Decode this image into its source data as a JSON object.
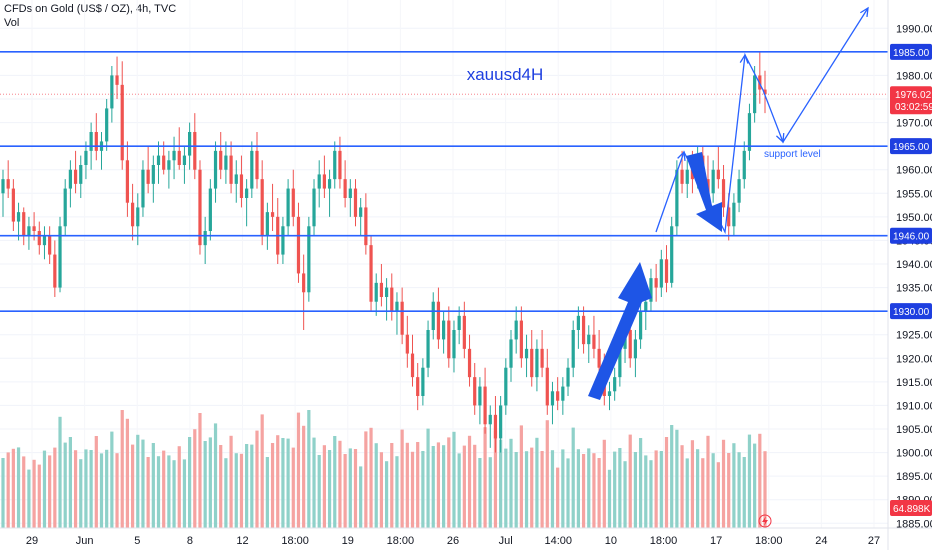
{
  "header": {
    "symbol_line": "CFDs on Gold (US$ / OZ), 4h, TVC",
    "volume_label": "Vol"
  },
  "chart_data": {
    "type": "candlestick",
    "title": "xauusd4H",
    "price_axis": {
      "ticks": [
        1885,
        1890,
        1895,
        1900,
        1905,
        1910,
        1915,
        1920,
        1925,
        1930,
        1935,
        1940,
        1945,
        1950,
        1955,
        1960,
        1965,
        1970,
        1975,
        1980,
        1985,
        1990
      ],
      "tick_labels": [
        "1885.00",
        "1890.00",
        "1895.00",
        "1900.00",
        "1905.00",
        "1910.00",
        "1915.00",
        "1920.00",
        "1925.00",
        "1930.00",
        "1935.00",
        "1940.00",
        "1945.00",
        "1950.00",
        "1955.00",
        "1960.00",
        "1965.00",
        "1970.00",
        "1975.00",
        "1980.00",
        "1985.00",
        "1990.00"
      ],
      "range": [
        1884,
        1996
      ]
    },
    "time_axis_labels": [
      "29",
      "Jun",
      "5",
      "8",
      "12",
      "18:00",
      "19",
      "18:00",
      "26",
      "Jul",
      "14:00",
      "10",
      "18:00",
      "17",
      "18:00",
      "24",
      "27"
    ],
    "levels": [
      {
        "price": 1985.0,
        "label": "1985.00"
      },
      {
        "price": 1965.0,
        "label": "1965.00"
      },
      {
        "price": 1946.0,
        "label": "1946.00"
      },
      {
        "price": 1930.0,
        "label": "1930.00"
      }
    ],
    "current_price": {
      "price": 1976.02,
      "label": "1976.02",
      "countdown": "03:02:59"
    },
    "volume_value": "64.898K",
    "annotations": {
      "support": "support level"
    },
    "colors": {
      "up": "#26a69a",
      "down": "#ef5350",
      "level": "#2962ff",
      "vol_up": "#8fd1c9",
      "vol_down": "#f5a3a1",
      "tag": "#1e3fe0",
      "price_tag": "#f23645"
    },
    "series": [
      {
        "o": 1955,
        "h": 1960,
        "l": 1950,
        "c": 1958
      },
      {
        "o": 1958,
        "h": 1962,
        "l": 1954,
        "c": 1956
      },
      {
        "o": 1956,
        "h": 1958,
        "l": 1947,
        "c": 1949
      },
      {
        "o": 1949,
        "h": 1953,
        "l": 1945,
        "c": 1951
      },
      {
        "o": 1951,
        "h": 1952,
        "l": 1944,
        "c": 1946
      },
      {
        "o": 1946,
        "h": 1950,
        "l": 1943,
        "c": 1948
      },
      {
        "o": 1948,
        "h": 1951,
        "l": 1945,
        "c": 1947
      },
      {
        "o": 1947,
        "h": 1949,
        "l": 1942,
        "c": 1944
      },
      {
        "o": 1944,
        "h": 1948,
        "l": 1941,
        "c": 1946
      },
      {
        "o": 1946,
        "h": 1948,
        "l": 1940,
        "c": 1942
      },
      {
        "o": 1942,
        "h": 1945,
        "l": 1933,
        "c": 1935
      },
      {
        "o": 1935,
        "h": 1950,
        "l": 1934,
        "c": 1948
      },
      {
        "o": 1948,
        "h": 1958,
        "l": 1946,
        "c": 1956
      },
      {
        "o": 1956,
        "h": 1962,
        "l": 1952,
        "c": 1960
      },
      {
        "o": 1960,
        "h": 1964,
        "l": 1955,
        "c": 1957
      },
      {
        "o": 1957,
        "h": 1963,
        "l": 1954,
        "c": 1961
      },
      {
        "o": 1961,
        "h": 1966,
        "l": 1958,
        "c": 1964
      },
      {
        "o": 1964,
        "h": 1970,
        "l": 1960,
        "c": 1968
      },
      {
        "o": 1968,
        "h": 1972,
        "l": 1962,
        "c": 1964
      },
      {
        "o": 1964,
        "h": 1968,
        "l": 1960,
        "c": 1966
      },
      {
        "o": 1966,
        "h": 1975,
        "l": 1964,
        "c": 1973
      },
      {
        "o": 1973,
        "h": 1982,
        "l": 1970,
        "c": 1980
      },
      {
        "o": 1980,
        "h": 1984,
        "l": 1975,
        "c": 1978
      },
      {
        "o": 1978,
        "h": 1983,
        "l": 1960,
        "c": 1962
      },
      {
        "o": 1962,
        "h": 1966,
        "l": 1950,
        "c": 1953
      },
      {
        "o": 1953,
        "h": 1957,
        "l": 1945,
        "c": 1948
      },
      {
        "o": 1948,
        "h": 1955,
        "l": 1944,
        "c": 1952
      },
      {
        "o": 1952,
        "h": 1962,
        "l": 1950,
        "c": 1960
      },
      {
        "o": 1960,
        "h": 1965,
        "l": 1955,
        "c": 1957
      },
      {
        "o": 1957,
        "h": 1963,
        "l": 1953,
        "c": 1961
      },
      {
        "o": 1961,
        "h": 1966,
        "l": 1957,
        "c": 1963
      },
      {
        "o": 1963,
        "h": 1966,
        "l": 1959,
        "c": 1960
      },
      {
        "o": 1960,
        "h": 1964,
        "l": 1956,
        "c": 1962
      },
      {
        "o": 1962,
        "h": 1967,
        "l": 1958,
        "c": 1964
      },
      {
        "o": 1964,
        "h": 1969,
        "l": 1960,
        "c": 1961
      },
      {
        "o": 1961,
        "h": 1965,
        "l": 1957,
        "c": 1963
      },
      {
        "o": 1963,
        "h": 1970,
        "l": 1960,
        "c": 1968
      },
      {
        "o": 1968,
        "h": 1972,
        "l": 1958,
        "c": 1960
      },
      {
        "o": 1960,
        "h": 1962,
        "l": 1942,
        "c": 1944
      },
      {
        "o": 1944,
        "h": 1950,
        "l": 1940,
        "c": 1947
      },
      {
        "o": 1947,
        "h": 1958,
        "l": 1945,
        "c": 1956
      },
      {
        "o": 1956,
        "h": 1966,
        "l": 1953,
        "c": 1964
      },
      {
        "o": 1964,
        "h": 1968,
        "l": 1958,
        "c": 1960
      },
      {
        "o": 1960,
        "h": 1966,
        "l": 1957,
        "c": 1963
      },
      {
        "o": 1963,
        "h": 1966,
        "l": 1955,
        "c": 1957
      },
      {
        "o": 1957,
        "h": 1962,
        "l": 1953,
        "c": 1959
      },
      {
        "o": 1959,
        "h": 1963,
        "l": 1952,
        "c": 1954
      },
      {
        "o": 1954,
        "h": 1958,
        "l": 1948,
        "c": 1956
      },
      {
        "o": 1956,
        "h": 1966,
        "l": 1954,
        "c": 1964
      },
      {
        "o": 1964,
        "h": 1968,
        "l": 1956,
        "c": 1958
      },
      {
        "o": 1958,
        "h": 1962,
        "l": 1944,
        "c": 1946
      },
      {
        "o": 1946,
        "h": 1953,
        "l": 1943,
        "c": 1951
      },
      {
        "o": 1951,
        "h": 1957,
        "l": 1947,
        "c": 1950
      },
      {
        "o": 1950,
        "h": 1954,
        "l": 1940,
        "c": 1942
      },
      {
        "o": 1942,
        "h": 1950,
        "l": 1940,
        "c": 1948
      },
      {
        "o": 1948,
        "h": 1958,
        "l": 1946,
        "c": 1956
      },
      {
        "o": 1956,
        "h": 1960,
        "l": 1948,
        "c": 1950
      },
      {
        "o": 1950,
        "h": 1953,
        "l": 1936,
        "c": 1938
      },
      {
        "o": 1938,
        "h": 1942,
        "l": 1926,
        "c": 1934
      },
      {
        "o": 1934,
        "h": 1950,
        "l": 1932,
        "c": 1948
      },
      {
        "o": 1948,
        "h": 1958,
        "l": 1946,
        "c": 1956
      },
      {
        "o": 1956,
        "h": 1962,
        "l": 1952,
        "c": 1959
      },
      {
        "o": 1959,
        "h": 1963,
        "l": 1954,
        "c": 1956
      },
      {
        "o": 1956,
        "h": 1960,
        "l": 1950,
        "c": 1958
      },
      {
        "o": 1958,
        "h": 1966,
        "l": 1956,
        "c": 1964
      },
      {
        "o": 1964,
        "h": 1967,
        "l": 1956,
        "c": 1958
      },
      {
        "o": 1958,
        "h": 1962,
        "l": 1952,
        "c": 1954
      },
      {
        "o": 1954,
        "h": 1958,
        "l": 1950,
        "c": 1956
      },
      {
        "o": 1956,
        "h": 1958,
        "l": 1948,
        "c": 1950
      },
      {
        "o": 1950,
        "h": 1954,
        "l": 1946,
        "c": 1952
      },
      {
        "o": 1952,
        "h": 1955,
        "l": 1942,
        "c": 1944
      },
      {
        "o": 1944,
        "h": 1946,
        "l": 1930,
        "c": 1932
      },
      {
        "o": 1932,
        "h": 1938,
        "l": 1929,
        "c": 1936
      },
      {
        "o": 1936,
        "h": 1940,
        "l": 1931,
        "c": 1933
      },
      {
        "o": 1933,
        "h": 1937,
        "l": 1928,
        "c": 1935
      },
      {
        "o": 1935,
        "h": 1938,
        "l": 1928,
        "c": 1930
      },
      {
        "o": 1930,
        "h": 1934,
        "l": 1925,
        "c": 1932
      },
      {
        "o": 1932,
        "h": 1935,
        "l": 1923,
        "c": 1925
      },
      {
        "o": 1925,
        "h": 1929,
        "l": 1918,
        "c": 1921
      },
      {
        "o": 1921,
        "h": 1925,
        "l": 1914,
        "c": 1916
      },
      {
        "o": 1916,
        "h": 1919,
        "l": 1909,
        "c": 1912
      },
      {
        "o": 1912,
        "h": 1920,
        "l": 1910,
        "c": 1918
      },
      {
        "o": 1918,
        "h": 1928,
        "l": 1916,
        "c": 1926
      },
      {
        "o": 1926,
        "h": 1934,
        "l": 1924,
        "c": 1932
      },
      {
        "o": 1932,
        "h": 1935,
        "l": 1922,
        "c": 1924
      },
      {
        "o": 1924,
        "h": 1930,
        "l": 1921,
        "c": 1928
      },
      {
        "o": 1928,
        "h": 1931,
        "l": 1918,
        "c": 1920
      },
      {
        "o": 1920,
        "h": 1928,
        "l": 1917,
        "c": 1926
      },
      {
        "o": 1926,
        "h": 1931,
        "l": 1923,
        "c": 1929
      },
      {
        "o": 1929,
        "h": 1932,
        "l": 1920,
        "c": 1922
      },
      {
        "o": 1922,
        "h": 1925,
        "l": 1914,
        "c": 1916
      },
      {
        "o": 1916,
        "h": 1919,
        "l": 1908,
        "c": 1910
      },
      {
        "o": 1910,
        "h": 1916,
        "l": 1906,
        "c": 1914
      },
      {
        "o": 1914,
        "h": 1918,
        "l": 1904,
        "c": 1906
      },
      {
        "o": 1906,
        "h": 1910,
        "l": 1901,
        "c": 1908
      },
      {
        "o": 1908,
        "h": 1912,
        "l": 1900,
        "c": 1903
      },
      {
        "o": 1903,
        "h": 1912,
        "l": 1900,
        "c": 1910
      },
      {
        "o": 1910,
        "h": 1920,
        "l": 1908,
        "c": 1918
      },
      {
        "o": 1918,
        "h": 1926,
        "l": 1915,
        "c": 1924
      },
      {
        "o": 1924,
        "h": 1931,
        "l": 1921,
        "c": 1928
      },
      {
        "o": 1928,
        "h": 1931,
        "l": 1918,
        "c": 1920
      },
      {
        "o": 1920,
        "h": 1925,
        "l": 1916,
        "c": 1922
      },
      {
        "o": 1922,
        "h": 1926,
        "l": 1914,
        "c": 1916
      },
      {
        "o": 1916,
        "h": 1924,
        "l": 1913,
        "c": 1922
      },
      {
        "o": 1922,
        "h": 1926,
        "l": 1916,
        "c": 1918
      },
      {
        "o": 1918,
        "h": 1922,
        "l": 1908,
        "c": 1910
      },
      {
        "o": 1910,
        "h": 1915,
        "l": 1906,
        "c": 1913
      },
      {
        "o": 1913,
        "h": 1916,
        "l": 1909,
        "c": 1911
      },
      {
        "o": 1911,
        "h": 1916,
        "l": 1908,
        "c": 1914
      },
      {
        "o": 1914,
        "h": 1920,
        "l": 1912,
        "c": 1918
      },
      {
        "o": 1918,
        "h": 1928,
        "l": 1916,
        "c": 1926
      },
      {
        "o": 1926,
        "h": 1931,
        "l": 1922,
        "c": 1929
      },
      {
        "o": 1929,
        "h": 1931,
        "l": 1921,
        "c": 1923
      },
      {
        "o": 1923,
        "h": 1927,
        "l": 1919,
        "c": 1925
      },
      {
        "o": 1925,
        "h": 1929,
        "l": 1920,
        "c": 1922
      },
      {
        "o": 1922,
        "h": 1926,
        "l": 1916,
        "c": 1918
      },
      {
        "o": 1918,
        "h": 1921,
        "l": 1910,
        "c": 1912
      },
      {
        "o": 1912,
        "h": 1915,
        "l": 1909,
        "c": 1913
      },
      {
        "o": 1913,
        "h": 1918,
        "l": 1911,
        "c": 1916
      },
      {
        "o": 1916,
        "h": 1924,
        "l": 1914,
        "c": 1922
      },
      {
        "o": 1922,
        "h": 1928,
        "l": 1919,
        "c": 1926
      },
      {
        "o": 1926,
        "h": 1930,
        "l": 1918,
        "c": 1920
      },
      {
        "o": 1920,
        "h": 1926,
        "l": 1916,
        "c": 1924
      },
      {
        "o": 1924,
        "h": 1932,
        "l": 1922,
        "c": 1930
      },
      {
        "o": 1930,
        "h": 1934,
        "l": 1926,
        "c": 1932
      },
      {
        "o": 1932,
        "h": 1939,
        "l": 1930,
        "c": 1937
      },
      {
        "o": 1937,
        "h": 1940,
        "l": 1932,
        "c": 1935
      },
      {
        "o": 1935,
        "h": 1943,
        "l": 1933,
        "c": 1941
      },
      {
        "o": 1941,
        "h": 1944,
        "l": 1934,
        "c": 1936
      },
      {
        "o": 1936,
        "h": 1950,
        "l": 1935,
        "c": 1948
      },
      {
        "o": 1948,
        "h": 1962,
        "l": 1946,
        "c": 1960
      },
      {
        "o": 1960,
        "h": 1964,
        "l": 1955,
        "c": 1957
      },
      {
        "o": 1957,
        "h": 1962,
        "l": 1954,
        "c": 1960
      },
      {
        "o": 1960,
        "h": 1964,
        "l": 1955,
        "c": 1958
      },
      {
        "o": 1958,
        "h": 1965,
        "l": 1956,
        "c": 1963
      },
      {
        "o": 1963,
        "h": 1965,
        "l": 1956,
        "c": 1958
      },
      {
        "o": 1958,
        "h": 1963,
        "l": 1952,
        "c": 1955
      },
      {
        "o": 1955,
        "h": 1962,
        "l": 1953,
        "c": 1960
      },
      {
        "o": 1960,
        "h": 1965,
        "l": 1956,
        "c": 1958
      },
      {
        "o": 1958,
        "h": 1961,
        "l": 1950,
        "c": 1952
      },
      {
        "o": 1952,
        "h": 1955,
        "l": 1945,
        "c": 1948
      },
      {
        "o": 1948,
        "h": 1955,
        "l": 1946,
        "c": 1953
      },
      {
        "o": 1953,
        "h": 1960,
        "l": 1951,
        "c": 1958
      },
      {
        "o": 1958,
        "h": 1966,
        "l": 1956,
        "c": 1964
      },
      {
        "o": 1964,
        "h": 1974,
        "l": 1962,
        "c": 1972
      },
      {
        "o": 1972,
        "h": 1982,
        "l": 1970,
        "c": 1980
      },
      {
        "o": 1980,
        "h": 1985,
        "l": 1974,
        "c": 1977
      },
      {
        "o": 1977,
        "h": 1981,
        "l": 1972,
        "c": 1976
      }
    ]
  }
}
